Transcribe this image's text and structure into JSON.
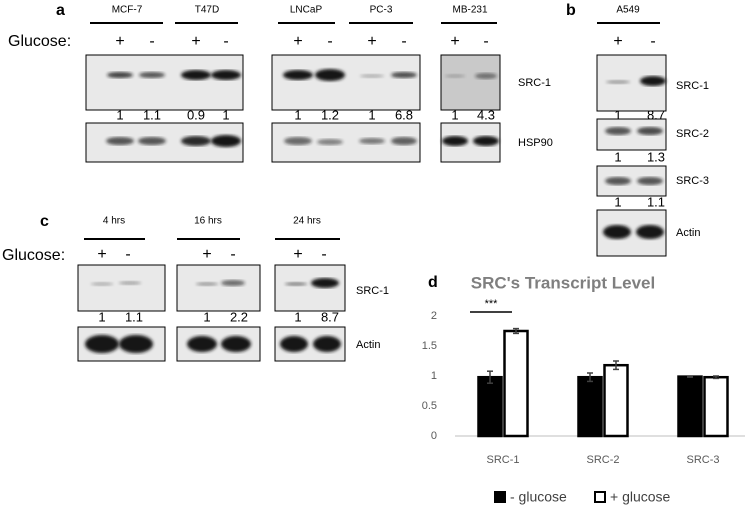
{
  "panel_a": {
    "label": "a",
    "glucose_label": "Glucose:",
    "signs": [
      "+",
      "-"
    ],
    "cell_lines": [
      "MCF-7",
      "T47D",
      "LNCaP",
      "PC-3",
      "MB-231"
    ],
    "src1_quant": [
      1,
      1.1,
      0.9,
      1,
      1,
      1.2,
      1,
      6.8,
      1,
      4.3
    ],
    "bands": [
      "SRC-1",
      "HSP90"
    ]
  },
  "panel_b": {
    "label": "b",
    "cell_line": "A549",
    "signs": [
      "+",
      "-"
    ],
    "rows": [
      {
        "band": "SRC-1",
        "quant": [
          1,
          8.7
        ]
      },
      {
        "band": "SRC-2",
        "quant": [
          1,
          1.3
        ]
      },
      {
        "band": "SRC-3",
        "quant": [
          1,
          1.1
        ]
      },
      {
        "band": "Actin"
      }
    ]
  },
  "panel_c": {
    "label": "c",
    "glucose_label": "Glucose:",
    "signs": [
      "+",
      "-"
    ],
    "times": [
      "4 hrs",
      "16 hrs",
      "24 hrs"
    ],
    "src1_quant": [
      [
        1,
        1.1
      ],
      [
        1,
        2.2
      ],
      [
        1,
        8.7
      ]
    ],
    "bands": [
      "SRC-1",
      "Actin"
    ]
  },
  "chart_data": {
    "type": "bar",
    "panel_label": "d",
    "title": "SRC's Transcript Level",
    "categories": [
      "SRC-1",
      "SRC-2",
      "SRC-3"
    ],
    "series": [
      {
        "name": "- glucose",
        "color": "#000000",
        "values": [
          0.98,
          0.98,
          0.99
        ],
        "errors": [
          0.1,
          0.07,
          0.01
        ]
      },
      {
        "name": "+ glucose",
        "color": "#ffffff",
        "values": [
          1.75,
          1.18,
          0.98
        ],
        "errors": [
          0.04,
          0.07,
          0.02
        ]
      }
    ],
    "ylim": [
      0,
      2
    ],
    "yticks": [
      0,
      0.5,
      1,
      1.5,
      2
    ],
    "annotation": "***"
  }
}
